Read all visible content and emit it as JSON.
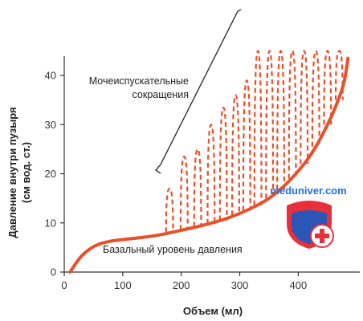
{
  "chart_data": {
    "type": "line",
    "xlabel": "Объем (мл)",
    "ylabel_line1": "Давление внутри пузыря",
    "ylabel_line2": "(см вод. ст.)",
    "xlim": [
      0,
      490
    ],
    "ylim": [
      0,
      45
    ],
    "x_ticks": [
      0,
      100,
      200,
      300,
      400
    ],
    "y_ticks": [
      0,
      10,
      20,
      30,
      40
    ],
    "grid": false,
    "series": [
      {
        "name": "Базальный уровень давления",
        "style": "solid",
        "color": "#e8502a",
        "x": [
          10,
          20,
          30,
          45,
          60,
          80,
          100,
          130,
          160,
          200,
          240,
          280,
          320,
          350,
          380,
          410,
          430,
          450,
          465,
          478,
          485
        ],
        "y": [
          0,
          1.8,
          3.3,
          4.8,
          5.7,
          6.3,
          6.6,
          7.0,
          7.5,
          8.5,
          9.6,
          11.0,
          13.0,
          15.0,
          18.0,
          22.0,
          25.5,
          30.0,
          34.0,
          38.5,
          43.5
        ]
      }
    ],
    "contractions": {
      "name": "Мочеиспускательные сокращения",
      "style": "dashed",
      "color": "#e8502a",
      "width_ml": 12,
      "peaks": [
        {
          "x": 180,
          "base": 8.1,
          "peak": 17
        },
        {
          "x": 205,
          "base": 8.6,
          "peak": 23.5
        },
        {
          "x": 228,
          "base": 9.2,
          "peak": 25
        },
        {
          "x": 251,
          "base": 9.8,
          "peak": 30
        },
        {
          "x": 272,
          "base": 10.5,
          "peak": 33.5
        },
        {
          "x": 293,
          "base": 11.5,
          "peak": 36
        },
        {
          "x": 312,
          "base": 12.5,
          "peak": 39
        },
        {
          "x": 331,
          "base": 13.6,
          "peak": 45
        },
        {
          "x": 351,
          "base": 15.0,
          "peak": 45
        },
        {
          "x": 370,
          "base": 16.8,
          "peak": 45
        },
        {
          "x": 390,
          "base": 19.0,
          "peak": 45
        },
        {
          "x": 410,
          "base": 22.0,
          "peak": 45
        },
        {
          "x": 430,
          "base": 25.5,
          "peak": 45
        },
        {
          "x": 450,
          "base": 30.0,
          "peak": 45
        },
        {
          "x": 470,
          "base": 35.0,
          "peak": 45
        }
      ]
    },
    "annotations": {
      "contractions_line1": "Мочеиспускательные",
      "contractions_line2": "сокращения",
      "basal_label": "Базальный уровень давления"
    }
  },
  "watermark": {
    "text": "meduniver.com",
    "color": "#1e6fd9",
    "shield_red": "#e8303a",
    "shield_blue": "#2a56b8"
  }
}
